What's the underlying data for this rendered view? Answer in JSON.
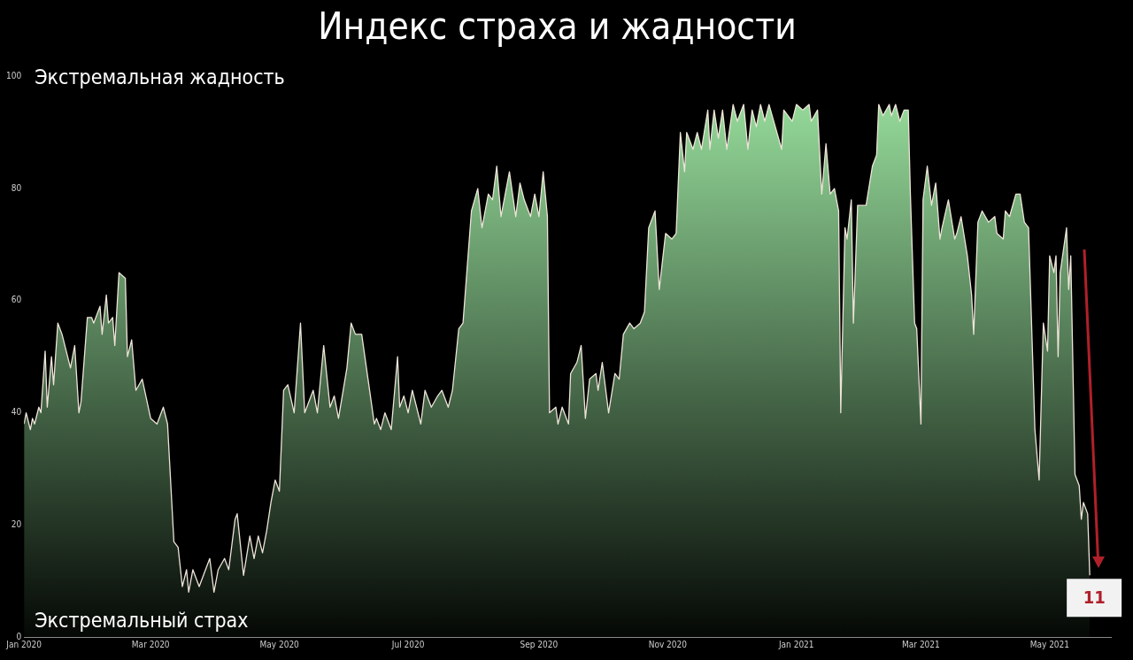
{
  "chart_data": {
    "type": "area",
    "title": "Индекс страха и жадности",
    "x": [
      "2020-01-01",
      "2020-01-02",
      "2020-01-04",
      "2020-01-05",
      "2020-01-06",
      "2020-01-08",
      "2020-01-09",
      "2020-01-11",
      "2020-01-12",
      "2020-01-14",
      "2020-01-15",
      "2020-01-17",
      "2020-01-19",
      "2020-01-21",
      "2020-01-23",
      "2020-01-25",
      "2020-01-27",
      "2020-01-28",
      "2020-01-31",
      "2020-02-02",
      "2020-02-03",
      "2020-02-06",
      "2020-02-07",
      "2020-02-09",
      "2020-02-10",
      "2020-02-12",
      "2020-02-13",
      "2020-02-15",
      "2020-02-18",
      "2020-02-19",
      "2020-02-21",
      "2020-02-23",
      "2020-02-26",
      "2020-03-01",
      "2020-03-04",
      "2020-03-07",
      "2020-03-09",
      "2020-03-12",
      "2020-03-14",
      "2020-03-16",
      "2020-03-18",
      "2020-03-19",
      "2020-03-21",
      "2020-03-24",
      "2020-03-26",
      "2020-03-29",
      "2020-03-31",
      "2020-04-02",
      "2020-04-05",
      "2020-04-07",
      "2020-04-10",
      "2020-04-11",
      "2020-04-14",
      "2020-04-17",
      "2020-04-19",
      "2020-04-21",
      "2020-04-23",
      "2020-04-25",
      "2020-04-27",
      "2020-04-29",
      "2020-05-01",
      "2020-05-03",
      "2020-05-05",
      "2020-05-08",
      "2020-05-11",
      "2020-05-13",
      "2020-05-17",
      "2020-05-19",
      "2020-05-22",
      "2020-05-25",
      "2020-05-27",
      "2020-05-29",
      "2020-06-02",
      "2020-06-04",
      "2020-06-06",
      "2020-06-09",
      "2020-06-12",
      "2020-06-15",
      "2020-06-16",
      "2020-06-18",
      "2020-06-20",
      "2020-06-23",
      "2020-06-26",
      "2020-06-27",
      "2020-06-29",
      "2020-07-01",
      "2020-07-03",
      "2020-07-07",
      "2020-07-09",
      "2020-07-12",
      "2020-07-15",
      "2020-07-17",
      "2020-07-20",
      "2020-07-22",
      "2020-07-25",
      "2020-07-27",
      "2020-07-31",
      "2020-08-03",
      "2020-08-05",
      "2020-08-08",
      "2020-08-10",
      "2020-08-12",
      "2020-08-14",
      "2020-08-18",
      "2020-08-21",
      "2020-08-23",
      "2020-08-25",
      "2020-08-28",
      "2020-08-30",
      "2020-09-01",
      "2020-09-03",
      "2020-09-05",
      "2020-09-06",
      "2020-09-09",
      "2020-09-10",
      "2020-09-12",
      "2020-09-15",
      "2020-09-16",
      "2020-09-19",
      "2020-09-21",
      "2020-09-23",
      "2020-09-25",
      "2020-09-28",
      "2020-09-29",
      "2020-10-01",
      "2020-10-04",
      "2020-10-07",
      "2020-10-09",
      "2020-10-11",
      "2020-10-14",
      "2020-10-16",
      "2020-10-19",
      "2020-10-21",
      "2020-10-23",
      "2020-10-26",
      "2020-10-28",
      "2020-10-31",
      "2020-11-03",
      "2020-11-05",
      "2020-11-07",
      "2020-11-09",
      "2020-11-10",
      "2020-11-13",
      "2020-11-15",
      "2020-11-17",
      "2020-11-20",
      "2020-11-21",
      "2020-11-23",
      "2020-11-25",
      "2020-11-27",
      "2020-11-29",
      "2020-12-02",
      "2020-12-04",
      "2020-12-07",
      "2020-12-09",
      "2020-12-11",
      "2020-12-13",
      "2020-12-15",
      "2020-12-17",
      "2020-12-19",
      "2020-12-22",
      "2020-12-25",
      "2020-12-26",
      "2020-12-30",
      "2021-01-01",
      "2021-01-04",
      "2021-01-07",
      "2021-01-08",
      "2021-01-11",
      "2021-01-13",
      "2021-01-15",
      "2021-01-17",
      "2021-01-19",
      "2021-01-21",
      "2021-01-22",
      "2021-01-24",
      "2021-01-25",
      "2021-01-27",
      "2021-01-28",
      "2021-01-30",
      "2021-02-03",
      "2021-02-06",
      "2021-02-08",
      "2021-02-09",
      "2021-02-11",
      "2021-02-14",
      "2021-02-15",
      "2021-02-17",
      "2021-02-19",
      "2021-02-21",
      "2021-02-23",
      "2021-02-24",
      "2021-02-26",
      "2021-02-27",
      "2021-03-01",
      "2021-03-02",
      "2021-03-04",
      "2021-03-06",
      "2021-03-08",
      "2021-03-10",
      "2021-03-11",
      "2021-03-14",
      "2021-03-17",
      "2021-03-18",
      "2021-03-20",
      "2021-03-23",
      "2021-03-25",
      "2021-03-26",
      "2021-03-28",
      "2021-03-30",
      "2021-04-02",
      "2021-04-05",
      "2021-04-06",
      "2021-04-09",
      "2021-04-10",
      "2021-04-12",
      "2021-04-15",
      "2021-04-17",
      "2021-04-19",
      "2021-04-21",
      "2021-04-24",
      "2021-04-26",
      "2021-04-28",
      "2021-04-30",
      "2021-05-01",
      "2021-05-03",
      "2021-05-04",
      "2021-05-05",
      "2021-05-06",
      "2021-05-09",
      "2021-05-10",
      "2021-05-11",
      "2021-05-13",
      "2021-05-15",
      "2021-05-16",
      "2021-05-17",
      "2021-05-19",
      "2021-05-20"
    ],
    "series": [
      {
        "color": "#9be3a0",
        "values": [
          38,
          40,
          37,
          39,
          38,
          41,
          40,
          51,
          41,
          50,
          45,
          56,
          54,
          51,
          48,
          52,
          40,
          42,
          57,
          57,
          56,
          59,
          54,
          61,
          56,
          57,
          52,
          65,
          64,
          50,
          53,
          44,
          46,
          39,
          38,
          41,
          38,
          17,
          16,
          9,
          12,
          8,
          12,
          9,
          11,
          14,
          8,
          12,
          14,
          12,
          21,
          22,
          11,
          18,
          14,
          18,
          15,
          19,
          24,
          28,
          26,
          44,
          45,
          40,
          56,
          40,
          44,
          40,
          52,
          41,
          43,
          39,
          48,
          56,
          54,
          54,
          46,
          38,
          39,
          37,
          40,
          37,
          50,
          41,
          43,
          40,
          44,
          38,
          44,
          41,
          43,
          44,
          41,
          44,
          55,
          56,
          76,
          80,
          73,
          79,
          78,
          84,
          75,
          83,
          75,
          81,
          78,
          75,
          79,
          75,
          83,
          75,
          40,
          41,
          38,
          41,
          38,
          47,
          49,
          52,
          39,
          46,
          47,
          44,
          49,
          40,
          47,
          46,
          54,
          56,
          55,
          56,
          58,
          73,
          76,
          62,
          72,
          71,
          72,
          90,
          83,
          90,
          87,
          90,
          87,
          94,
          87,
          94,
          89,
          94,
          87,
          95,
          92,
          95,
          87,
          94,
          91,
          95,
          92,
          95,
          91,
          87,
          94,
          92,
          95,
          94,
          95,
          92,
          94,
          79,
          88,
          79,
          80,
          76,
          40,
          73,
          71,
          78,
          56,
          77,
          77,
          84,
          86,
          95,
          93,
          95,
          93,
          95,
          92,
          94,
          94,
          79,
          56,
          55,
          38,
          78,
          84,
          77,
          81,
          71,
          73,
          78,
          71,
          72,
          75,
          68,
          61,
          54,
          74,
          76,
          74,
          75,
          72,
          71,
          76,
          75,
          79,
          79,
          74,
          73,
          37,
          28,
          56,
          51,
          68,
          65,
          68,
          50,
          65,
          73,
          62,
          68,
          29,
          27,
          21,
          24,
          22,
          11
        ]
      }
    ],
    "xlim": [
      "2020-01-01",
      "2021-05-30"
    ],
    "xticks": [
      {
        "value": "2020-01-01",
        "label": "Jan 2020"
      },
      {
        "value": "2020-03-01",
        "label": "Mar 2020"
      },
      {
        "value": "2020-05-01",
        "label": "May 2020"
      },
      {
        "value": "2020-07-01",
        "label": "Jul 2020"
      },
      {
        "value": "2020-09-01",
        "label": "Sep 2020"
      },
      {
        "value": "2020-11-01",
        "label": "Nov 2020"
      },
      {
        "value": "2021-01-01",
        "label": "Jan 2021"
      },
      {
        "value": "2021-03-01",
        "label": "Mar 2021"
      },
      {
        "value": "2021-05-01",
        "label": "May 2021"
      }
    ],
    "ylim": [
      0,
      100
    ],
    "yticks": [
      0,
      20,
      40,
      60,
      80,
      100
    ],
    "marker": "none",
    "legend": false,
    "grid": false,
    "annotations": [
      "Экстремальная жадность",
      "Экстремальный страх",
      {
        "text": "11",
        "x": "2021-05-20",
        "y": 11
      }
    ]
  }
}
